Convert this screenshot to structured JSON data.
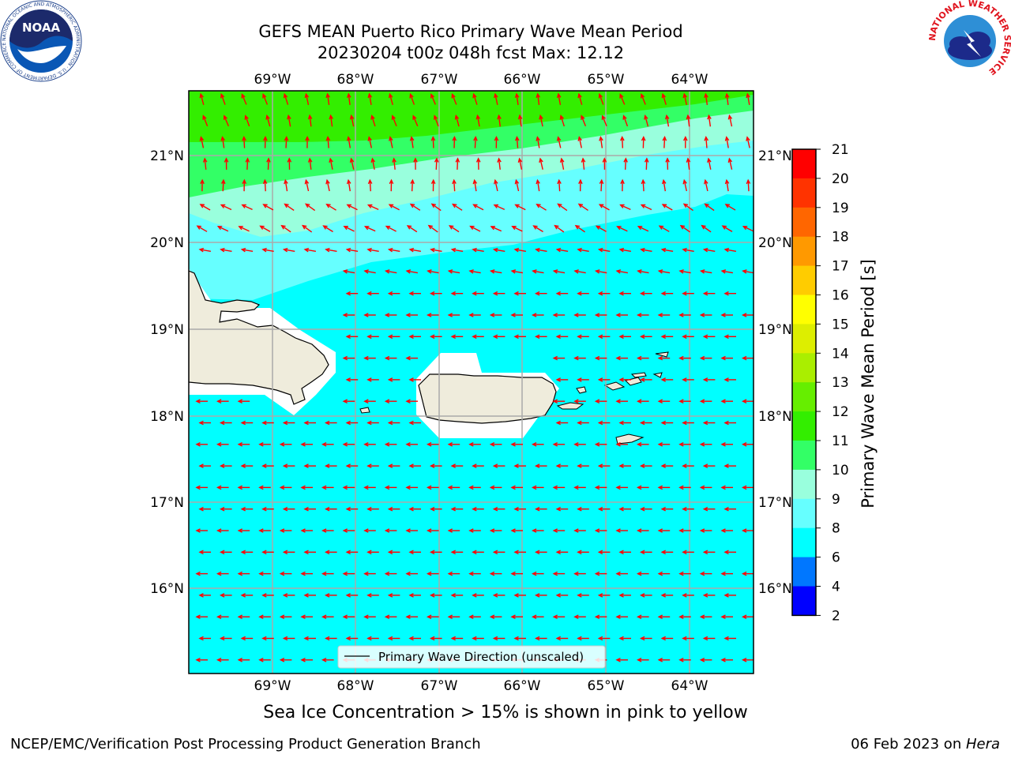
{
  "title": {
    "line1": "GEFS MEAN Puerto Rico Primary Wave Mean Period",
    "line2": "20230204 t00z 048h fcst   Max: 12.12"
  },
  "map": {
    "lon_labels": [
      "69°W",
      "68°W",
      "67°W",
      "66°W",
      "65°W",
      "64°W"
    ],
    "lat_labels": [
      "21°N",
      "20°N",
      "19°N",
      "18°N",
      "17°N",
      "16°N"
    ],
    "legend_label": "Primary Wave Direction (unscaled)",
    "colors": {
      "ocean_6_8": "#00ffff",
      "band_8_9": "#66ffff",
      "band_9_10": "#99ffdd",
      "band_10_11": "#33ff66",
      "band_11_12": "#33ee00",
      "land": "#efecdc",
      "arrow": "#ff0000"
    }
  },
  "colorbar": {
    "label": "Primary Wave Mean Period [s]",
    "ticks": [
      "21",
      "20",
      "19",
      "18",
      "17",
      "16",
      "15",
      "14",
      "13",
      "12",
      "11",
      "10",
      "9",
      "8",
      "6",
      "4",
      "2"
    ],
    "colors": [
      "#ff0000",
      "#ff3300",
      "#ff6600",
      "#ff9900",
      "#ffcc00",
      "#ffff00",
      "#ddee00",
      "#aaee00",
      "#66ee00",
      "#33ee00",
      "#33ff66",
      "#99ffdd",
      "#66ffff",
      "#00ffff",
      "#0077ff",
      "#0000ff"
    ]
  },
  "logos": {
    "noaa_text": "NOAA",
    "noaa_ring": "NATIONAL OCEANIC AND ATMOSPHERIC ADMINISTRATION · U.S. DEPARTMENT OF COMMERCE",
    "nws_ring": "NATIONAL WEATHER SERVICE"
  },
  "caption": "Sea Ice Concentration > 15% is shown in pink to yellow",
  "footer": {
    "left": "NCEP/EMC/Verification Post Processing Product Generation Branch",
    "right_date": "06 Feb 2023 on ",
    "right_host": "Hera"
  }
}
